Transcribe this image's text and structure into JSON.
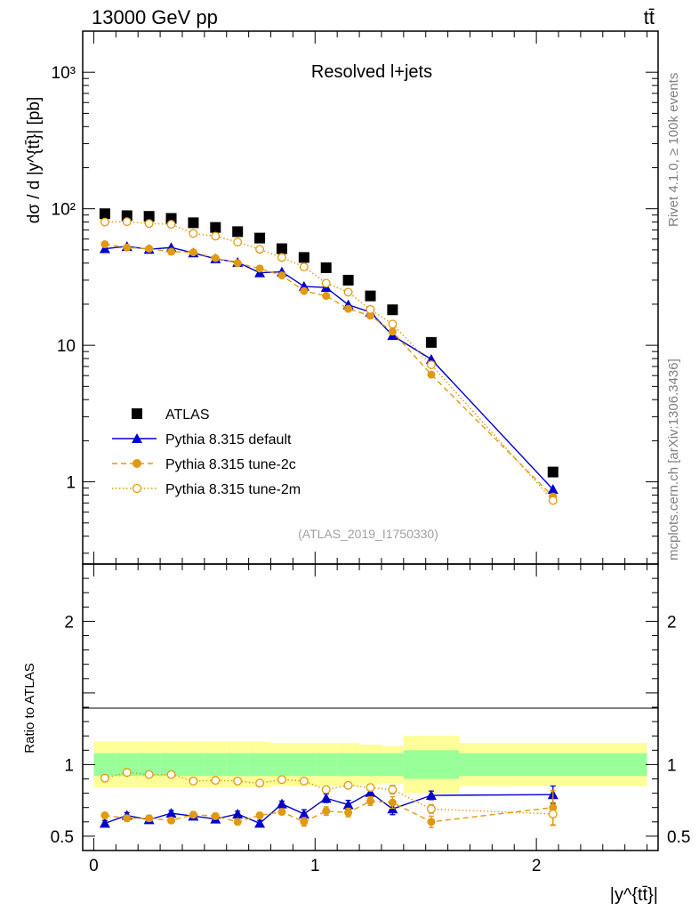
{
  "header": {
    "energy_label": "13000 GeV pp",
    "process_label": "tt̄"
  },
  "side_labels": {
    "rivet": "Rivet 4.1.0, ≥ 100k events",
    "mcplots": "mcplots.cern.ch [arXiv:1306.3436]"
  },
  "chart_data": [
    {
      "type": "scatter",
      "panel": "main",
      "title": "Resolved l+jets",
      "ylabel": "dσ / d |y^{tt̄}| [pb]",
      "yscale": "log",
      "xlim": [
        -0.05,
        2.55
      ],
      "ylim": [
        0.25,
        2000
      ],
      "y_tick_labels": [
        {
          "value": 1000,
          "label": "10³"
        },
        {
          "value": 100,
          "label": "10²"
        },
        {
          "value": 10,
          "label": "10"
        },
        {
          "value": 1,
          "label": "1"
        }
      ],
      "watermark": "(ATLAS_2019_I1750330)",
      "bins": [
        [
          0,
          0.1
        ],
        [
          0.1,
          0.2
        ],
        [
          0.2,
          0.3
        ],
        [
          0.3,
          0.4
        ],
        [
          0.4,
          0.5
        ],
        [
          0.5,
          0.6
        ],
        [
          0.6,
          0.7
        ],
        [
          0.7,
          0.8
        ],
        [
          0.8,
          0.9
        ],
        [
          0.9,
          1.0
        ],
        [
          1.0,
          1.1
        ],
        [
          1.1,
          1.2
        ],
        [
          1.2,
          1.3
        ],
        [
          1.3,
          1.4
        ],
        [
          1.4,
          1.65
        ],
        [
          1.65,
          2.5
        ]
      ],
      "x": [
        0.05,
        0.15,
        0.25,
        0.35,
        0.45,
        0.55,
        0.65,
        0.75,
        0.85,
        0.95,
        1.05,
        1.15,
        1.25,
        1.35,
        1.525,
        2.075
      ],
      "series": [
        {
          "name": "ATLAS",
          "marker": "square",
          "color": "#000000",
          "values": [
            92,
            89,
            88,
            85,
            79,
            73,
            68,
            61,
            51,
            44,
            37,
            30,
            23,
            18.2,
            10.5,
            1.18
          ]
        },
        {
          "name": "Pythia 8.315 default",
          "marker": "triangle",
          "color": "#0000cc",
          "line": "solid",
          "values": [
            51,
            53,
            50.5,
            52,
            47.5,
            43,
            40.5,
            34,
            34.5,
            27,
            26.5,
            19.8,
            17.5,
            11.8,
            7.9,
            0.88
          ]
        },
        {
          "name": "Pythia 8.315 tune-2c",
          "marker": "filled-circle",
          "color": "#e09a10",
          "line": "dashed",
          "values": [
            55,
            52,
            51,
            48.5,
            48,
            43.5,
            40,
            36.5,
            32.5,
            25,
            23,
            18.5,
            16.5,
            12.6,
            6.1,
            0.78
          ]
        },
        {
          "name": "Pythia 8.315 tune-2m",
          "marker": "open-circle",
          "color": "#e09a10",
          "line": "dotted",
          "values": [
            80,
            80.5,
            78,
            77,
            66,
            63,
            57,
            50.5,
            44,
            37.5,
            28.5,
            24.5,
            18.3,
            14.3,
            7.2,
            0.73
          ]
        }
      ]
    },
    {
      "type": "scatter",
      "panel": "ratio",
      "ylabel": "Ratio to ATLAS",
      "xlabel": "|y^{tt̄}|",
      "xlim": [
        -0.05,
        2.55
      ],
      "ylim": [
        0.4,
        2.4
      ],
      "x_tick_labels": [
        {
          "value": 0,
          "label": "0"
        },
        {
          "value": 1,
          "label": "1"
        },
        {
          "value": 2,
          "label": "2"
        }
      ],
      "y_tick_labels": [
        {
          "value": 2,
          "label": "2"
        },
        {
          "value": 1,
          "label": "1"
        },
        {
          "value": 0.5,
          "label": "0.5"
        }
      ],
      "bands": {
        "stat_color": "#99ff99",
        "total_color": "#ffff99",
        "stat_halfwidth": [
          0.08,
          0.08,
          0.08,
          0.08,
          0.08,
          0.08,
          0.08,
          0.08,
          0.08,
          0.08,
          0.08,
          0.08,
          0.08,
          0.08,
          0.1,
          0.08
        ],
        "total_halfwidth": [
          0.16,
          0.16,
          0.16,
          0.16,
          0.16,
          0.16,
          0.16,
          0.16,
          0.15,
          0.15,
          0.15,
          0.15,
          0.14,
          0.13,
          0.2,
          0.15
        ]
      },
      "series": [
        {
          "name": "Pythia 8.315 default",
          "values": [
            0.59,
            0.645,
            0.615,
            0.66,
            0.64,
            0.62,
            0.655,
            0.59,
            0.725,
            0.655,
            0.765,
            0.72,
            0.805,
            0.69,
            0.785,
            0.79
          ],
          "errors": [
            0.02,
            0.02,
            0.02,
            0.02,
            0.02,
            0.02,
            0.02,
            0.02,
            0.02,
            0.03,
            0.03,
            0.03,
            0.03,
            0.04,
            0.03,
            0.06
          ]
        },
        {
          "name": "Pythia 8.315 tune-2c",
          "values": [
            0.645,
            0.625,
            0.625,
            0.61,
            0.65,
            0.64,
            0.6,
            0.645,
            0.67,
            0.6,
            0.675,
            0.665,
            0.745,
            0.735,
            0.6,
            0.7
          ],
          "errors": [
            0.02,
            0.02,
            0.02,
            0.02,
            0.02,
            0.02,
            0.02,
            0.02,
            0.02,
            0.03,
            0.03,
            0.03,
            0.03,
            0.04,
            0.04,
            0.12
          ]
        },
        {
          "name": "Pythia 8.315 tune-2m",
          "values": [
            0.905,
            0.945,
            0.93,
            0.93,
            0.885,
            0.89,
            0.885,
            0.87,
            0.895,
            0.885,
            0.825,
            0.855,
            0.84,
            0.825,
            0.69,
            0.655
          ],
          "errors": [
            0.015,
            0.015,
            0.015,
            0.015,
            0.015,
            0.015,
            0.015,
            0.015,
            0.015,
            0.02,
            0.02,
            0.02,
            0.02,
            0.03,
            0.03,
            0.08
          ]
        }
      ]
    }
  ],
  "legend": [
    {
      "label": "ATLAS",
      "marker": "square"
    },
    {
      "label": "Pythia 8.315 default",
      "marker": "triangle"
    },
    {
      "label": "Pythia 8.315 tune-2c",
      "marker": "filled-circle"
    },
    {
      "label": "Pythia 8.315 tune-2m",
      "marker": "open-circle"
    }
  ]
}
